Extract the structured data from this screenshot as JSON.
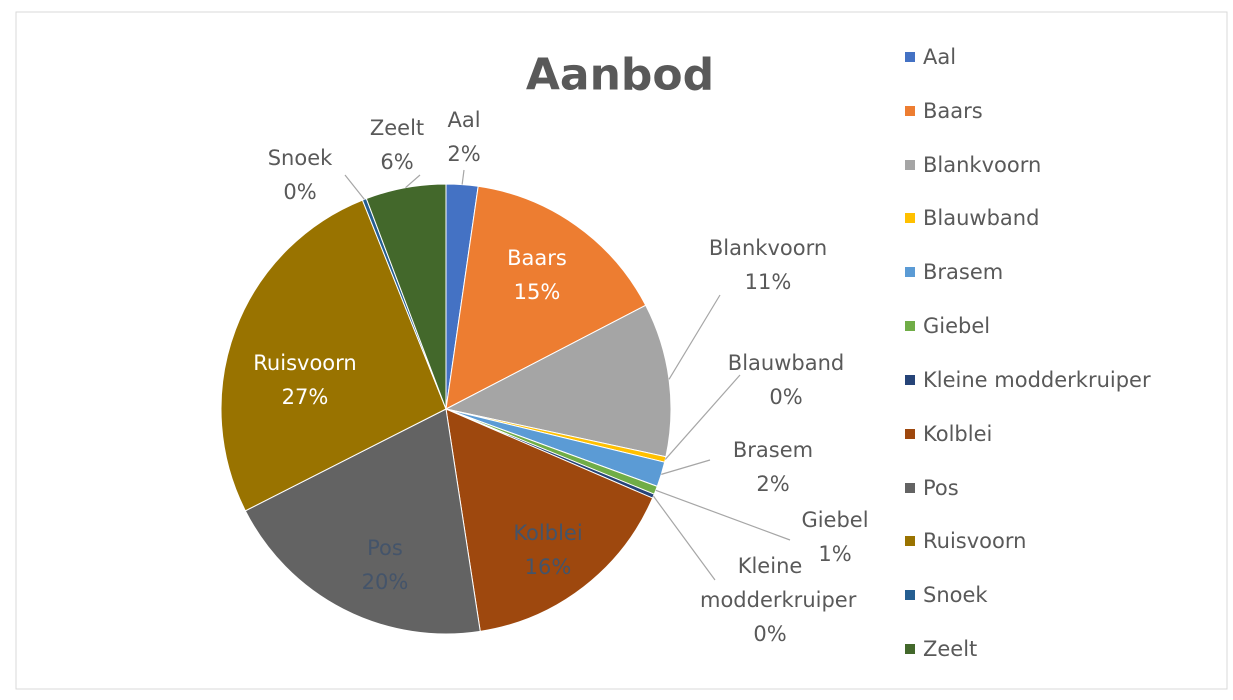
{
  "chart_data": {
    "type": "pie",
    "title": "Aanbod",
    "categories": [
      "Aal",
      "Baars",
      "Blankvoorn",
      "Blauwband",
      "Brasem",
      "Giebel",
      "Kleine modderkruiper",
      "Kolblei",
      "Pos",
      "Ruisvoorn",
      "Snoek",
      "Zeelt"
    ],
    "values": [
      2.3,
      15.2,
      11.1,
      0.4,
      1.8,
      0.6,
      0.3,
      16.2,
      20.1,
      26.6,
      0.3,
      5.8
    ],
    "value_labels": [
      "2%",
      "15%",
      "11%",
      "0%",
      "2%",
      "1%",
      "0%",
      "16%",
      "20%",
      "27%",
      "0%",
      "6%"
    ],
    "colors": [
      "#4472c4",
      "#ed7d31",
      "#a5a5a5",
      "#ffc000",
      "#5b9bd5",
      "#70ad47",
      "#264478",
      "#9e480e",
      "#636363",
      "#997300",
      "#255e91",
      "#43682b"
    ],
    "legend": "right"
  }
}
